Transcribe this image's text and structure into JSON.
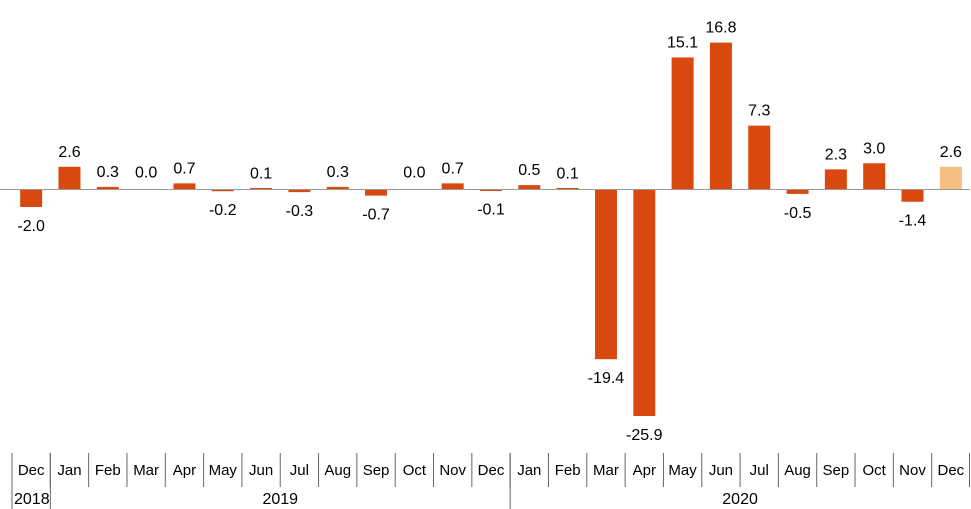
{
  "chart_data": {
    "type": "bar",
    "categories": [
      "Dec",
      "Jan",
      "Feb",
      "Mar",
      "Apr",
      "May",
      "Jun",
      "Jul",
      "Aug",
      "Sep",
      "Oct",
      "Nov",
      "Dec",
      "Jan",
      "Feb",
      "Mar",
      "Apr",
      "May",
      "Jun",
      "Jul",
      "Aug",
      "Sep",
      "Oct",
      "Nov",
      "Dec"
    ],
    "values": [
      -2.0,
      2.6,
      0.3,
      0.0,
      0.7,
      -0.2,
      0.1,
      -0.3,
      0.3,
      -0.7,
      0.0,
      0.7,
      -0.1,
      0.5,
      0.1,
      -19.4,
      -25.9,
      15.1,
      16.8,
      7.3,
      -0.5,
      2.3,
      3.0,
      -1.4,
      2.6
    ],
    "value_labels": [
      "-2.0",
      "2.6",
      "0.3",
      "0.0",
      "0.7",
      "-0.2",
      "0.1",
      "-0.3",
      "0.3",
      "-0.7",
      "0.0",
      "0.7",
      "-0.1",
      "0.5",
      "0.1",
      "-19.4",
      "-25.9",
      "15.1",
      "16.8",
      "7.3",
      "-0.5",
      "2.3",
      "3.0",
      "-1.4",
      "2.6"
    ],
    "years": [
      {
        "label": "2018",
        "start": 0,
        "end": 0
      },
      {
        "label": "2019",
        "start": 1,
        "end": 12
      },
      {
        "label": "2020",
        "start": 13,
        "end": 24
      }
    ],
    "highlight_index": 24,
    "colors": {
      "bar": "#d9480f",
      "highlight": "#f5c07f",
      "axis": "#999999",
      "divider": "#666666"
    },
    "ylim": [
      -25.9,
      16.8
    ],
    "grid": false,
    "legend": "none"
  }
}
